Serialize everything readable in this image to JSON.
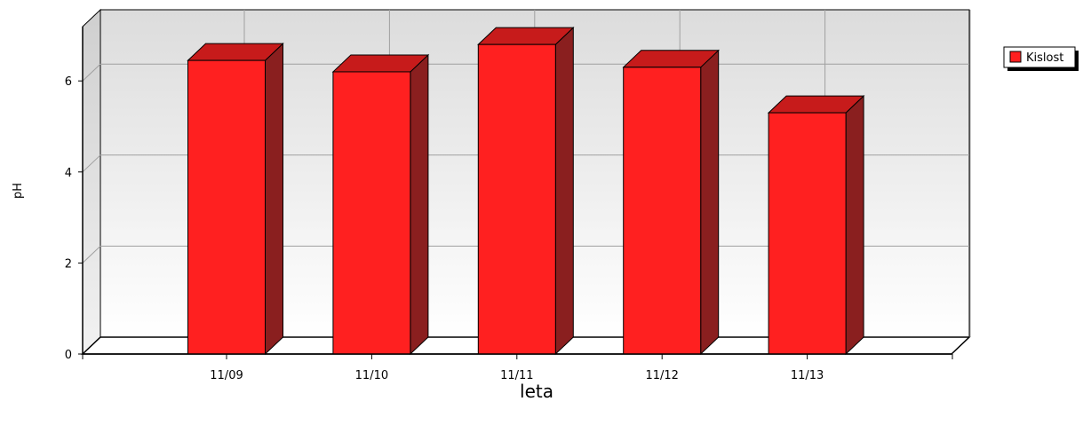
{
  "chart_data": {
    "type": "bar",
    "style": "3d",
    "categories": [
      "11/09",
      "11/10",
      "11/11",
      "11/12",
      "11/13"
    ],
    "series": [
      {
        "name": "Kislost",
        "values": [
          6.45,
          6.2,
          6.8,
          6.3,
          5.3
        ],
        "color": "#ff2020"
      }
    ],
    "ylabel": "pH",
    "xlabel": "leta",
    "ylim": [
      0,
      7
    ],
    "yticks": [
      0,
      2,
      4,
      6
    ],
    "grid": true,
    "legend": "top-right"
  },
  "colors": {
    "bar_front": "#ff2020",
    "bar_top": "#c71b1b",
    "bar_side": "#8a1f1f",
    "grid": "#a0a0a0"
  }
}
